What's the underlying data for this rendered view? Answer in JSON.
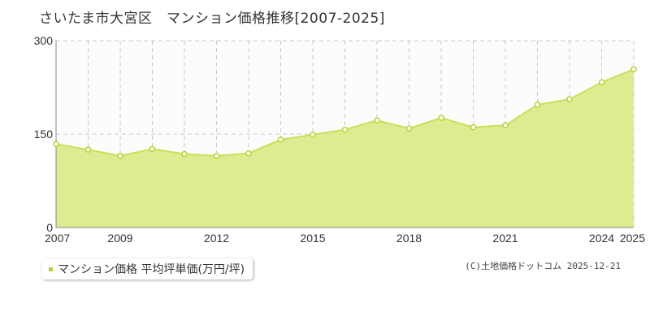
{
  "title": "さいたま市大宮区　マンション価格推移[2007-2025]",
  "legend": {
    "label": "マンション価格 平均坪単価(万円/坪)",
    "marker_color": "#b5d334"
  },
  "credit": "(C)土地価格ドットコム 2025-12-21",
  "colors": {
    "fill": "#dcec90",
    "line": "#c8e05a",
    "point_fill": "#ffffff",
    "point_stroke": "#b5d334",
    "grid": "#c8c8c8"
  },
  "chart_data": {
    "type": "area",
    "x": [
      2007,
      2008,
      2009,
      2010,
      2011,
      2012,
      2013,
      2014,
      2015,
      2016,
      2017,
      2018,
      2019,
      2020,
      2021,
      2022,
      2023,
      2024,
      2025
    ],
    "series": [
      {
        "name": "マンション価格 平均坪単価(万円/坪)",
        "values": [
          134,
          125,
          115,
          126,
          118,
          115,
          119,
          141,
          149,
          157,
          172,
          159,
          176,
          161,
          164,
          197,
          206,
          233,
          254
        ]
      }
    ],
    "xticks": [
      "2007",
      "2009",
      "2012",
      "2015",
      "2018",
      "2021",
      "2024",
      "2025"
    ],
    "yticks": [
      "0",
      "150",
      "300"
    ],
    "ylim": [
      0,
      300
    ],
    "xlim": [
      2007,
      2025
    ],
    "grid": true,
    "legend_position": "bottom-left"
  }
}
